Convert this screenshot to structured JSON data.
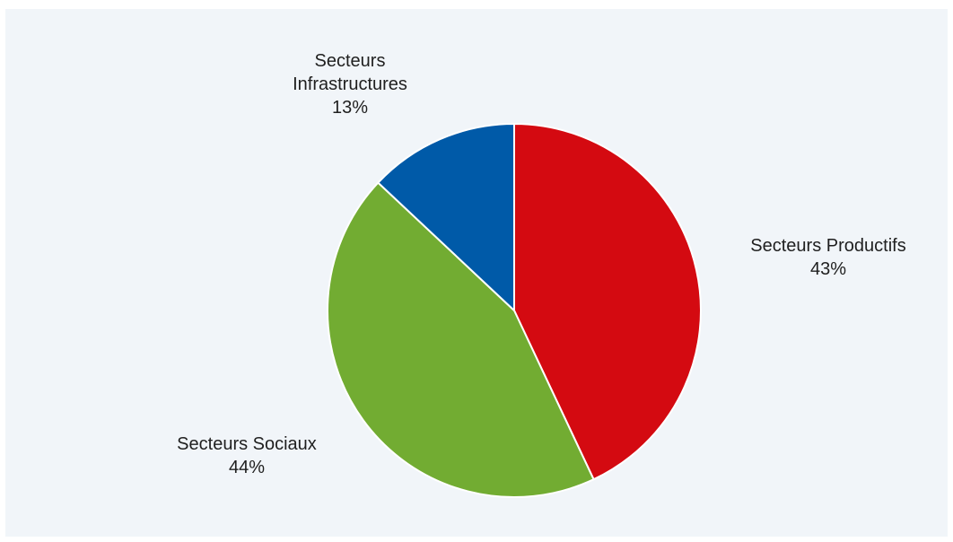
{
  "chart_data": {
    "type": "pie",
    "title": "",
    "slices": [
      {
        "label": "Secteurs Productifs",
        "value": 43,
        "value_label": "43%",
        "color": "#d40a11"
      },
      {
        "label": "Secteurs Sociaux",
        "value": 44,
        "value_label": "44%",
        "color": "#72ac32"
      },
      {
        "label_lines": [
          "Secteurs",
          "Infrastructures"
        ],
        "value": 13,
        "value_label": "13%",
        "color": "#005aa8"
      }
    ],
    "start_angle": "12 o'clock",
    "direction": "clockwise",
    "background": "#f1f5f9",
    "legend": "none"
  }
}
